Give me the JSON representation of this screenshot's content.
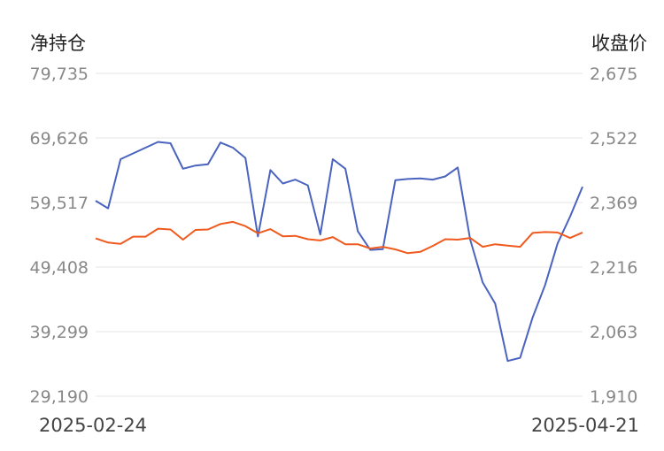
{
  "chart_data": {
    "type": "line",
    "left_axis_title": "净持仓",
    "right_axis_title": "收盘价",
    "left_ticks": [
      "79,735",
      "69,626",
      "59,517",
      "49,408",
      "39,299",
      "29,190"
    ],
    "right_ticks": [
      "2,675",
      "2,522",
      "2,369",
      "2,216",
      "2,063",
      "1,910"
    ],
    "left_range": [
      29190,
      79735
    ],
    "right_range": [
      1910,
      2675
    ],
    "x_start_label": "2025-02-24",
    "x_end_label": "2025-04-21",
    "grid": true,
    "colors": {
      "net_position": "#4a63bf",
      "close_price": "#ef5a1e"
    },
    "series": [
      {
        "axis": "left",
        "values": [
          59800,
          58600,
          66300,
          67200,
          68100,
          69000,
          68800,
          64800,
          65300,
          65500,
          68900,
          68100,
          66500,
          54200,
          64600,
          62500,
          63100,
          62200,
          54500,
          66300,
          64800,
          55000,
          52100,
          52200,
          63000,
          63200,
          63300,
          63100,
          63600,
          65000,
          53700,
          47000,
          43700,
          34700,
          35200,
          41500,
          46600,
          53100,
          57300,
          62000
        ]
      },
      {
        "axis": "right",
        "values": [
          2284,
          2274,
          2271,
          2288,
          2288,
          2307,
          2305,
          2281,
          2304,
          2305,
          2318,
          2323,
          2313,
          2296,
          2306,
          2289,
          2290,
          2282,
          2279,
          2287,
          2270,
          2270,
          2260,
          2264,
          2258,
          2249,
          2252,
          2266,
          2282,
          2281,
          2285,
          2264,
          2270,
          2267,
          2264,
          2297,
          2299,
          2298,
          2285,
          2298
        ]
      }
    ]
  }
}
